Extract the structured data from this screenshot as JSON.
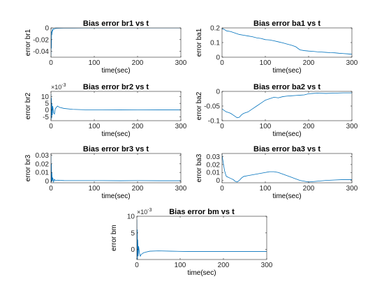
{
  "chart_data": [
    {
      "type": "line",
      "title": "Bias error br1 vs t",
      "xlabel": "time(sec)",
      "ylabel": "error br1",
      "xlim": [
        0,
        300
      ],
      "ylim": [
        -0.05,
        0
      ],
      "xticks": [
        0,
        100,
        200,
        300
      ],
      "xtick_labels": [
        "0",
        "100",
        "200",
        "300"
      ],
      "yticks": [
        0,
        -0.02,
        -0.04
      ],
      "ytick_labels": [
        "0",
        "-0.02",
        "-0.04"
      ],
      "exponent_label": "",
      "color": "#0072BD",
      "series": [
        {
          "x": [
            0,
            0.5,
            1,
            1.5,
            2,
            3,
            4,
            5,
            7,
            10,
            15,
            20,
            30,
            50,
            80,
            120,
            160,
            200,
            250,
            300
          ],
          "y": [
            -0.048,
            -0.02,
            -0.035,
            -0.006,
            -0.012,
            -0.003,
            -0.005,
            -0.0015,
            -0.002,
            -0.001,
            -0.0006,
            -0.0004,
            -0.0003,
            -0.0002,
            -0.0001,
            -0.0001,
            0,
            0,
            0,
            0
          ]
        }
      ]
    },
    {
      "type": "line",
      "title": "Bias error ba1 vs t",
      "xlabel": "time(sec)",
      "ylabel": "error ba1",
      "xlim": [
        0,
        300
      ],
      "ylim": [
        0,
        0.2
      ],
      "xticks": [
        0,
        100,
        200,
        300
      ],
      "xtick_labels": [
        "0",
        "100",
        "200",
        "300"
      ],
      "yticks": [
        0,
        0.1,
        0.2
      ],
      "ytick_labels": [
        "0",
        "0.1",
        "0.2"
      ],
      "exponent_label": "",
      "color": "#0072BD",
      "series": [
        {
          "x": [
            0,
            5,
            10,
            20,
            30,
            40,
            50,
            60,
            70,
            80,
            90,
            100,
            110,
            120,
            130,
            140,
            150,
            160,
            170,
            180,
            190,
            200,
            210,
            220,
            230,
            240,
            250,
            260,
            270,
            280,
            290,
            300
          ],
          "y": [
            0.195,
            0.19,
            0.18,
            0.175,
            0.165,
            0.155,
            0.15,
            0.145,
            0.14,
            0.132,
            0.128,
            0.12,
            0.118,
            0.112,
            0.105,
            0.098,
            0.09,
            0.082,
            0.072,
            0.05,
            0.045,
            0.042,
            0.04,
            0.037,
            0.035,
            0.033,
            0.031,
            0.03,
            0.027,
            0.025,
            0.023,
            0.02
          ]
        }
      ]
    },
    {
      "type": "line",
      "title": "Bias error br2 vs t",
      "xlabel": "time(sec)",
      "ylabel": "error br2",
      "xlim": [
        0,
        300
      ],
      "ylim": [
        -0.008,
        0.014
      ],
      "xticks": [
        0,
        100,
        200,
        300
      ],
      "xtick_labels": [
        "0",
        "100",
        "200",
        "300"
      ],
      "yticks": [
        0.01,
        0.005,
        0,
        -0.005
      ],
      "ytick_labels": [
        "10",
        "5",
        "0",
        "-5"
      ],
      "exponent_label": "×10",
      "exponent_power": "-3",
      "color": "#0072BD",
      "series": [
        {
          "x": [
            0,
            0.5,
            1,
            1.5,
            2,
            3,
            4,
            6,
            8,
            10,
            15,
            20,
            30,
            50,
            80,
            120,
            160,
            200,
            250,
            300
          ],
          "y": [
            0.012,
            -0.007,
            0.009,
            -0.006,
            0.005,
            -0.004,
            0.003,
            -0.002,
            -0.003,
            0.001,
            0.003,
            0.002,
            0.0012,
            0.0005,
            0.0002,
            0.0002,
            0.0001,
            0.0002,
            0.0001,
            0.0001
          ]
        }
      ]
    },
    {
      "type": "line",
      "title": "Bias error ba2 vs t",
      "xlabel": "time(sec)",
      "ylabel": "error ba2",
      "xlim": [
        0,
        300
      ],
      "ylim": [
        -0.1,
        0
      ],
      "xticks": [
        0,
        100,
        200,
        300
      ],
      "xtick_labels": [
        "0",
        "100",
        "200",
        "300"
      ],
      "yticks": [
        0,
        -0.05,
        -0.1
      ],
      "ytick_labels": [
        "0",
        "-0.05",
        "-0.1"
      ],
      "exponent_label": "",
      "color": "#0072BD",
      "series": [
        {
          "x": [
            0,
            5,
            10,
            15,
            20,
            25,
            30,
            35,
            40,
            45,
            50,
            60,
            70,
            80,
            90,
            100,
            110,
            120,
            130,
            140,
            150,
            160,
            170,
            180,
            190,
            200,
            210,
            220,
            240,
            260,
            280,
            300
          ],
          "y": [
            -0.06,
            -0.065,
            -0.07,
            -0.072,
            -0.075,
            -0.08,
            -0.085,
            -0.09,
            -0.088,
            -0.08,
            -0.075,
            -0.07,
            -0.06,
            -0.05,
            -0.04,
            -0.03,
            -0.025,
            -0.02,
            -0.022,
            -0.018,
            -0.016,
            -0.015,
            -0.014,
            -0.013,
            -0.012,
            -0.008,
            -0.007,
            -0.006,
            -0.007,
            -0.006,
            -0.005,
            -0.005
          ]
        }
      ]
    },
    {
      "type": "line",
      "title": "Bias error br3 vs t",
      "xlabel": "time(sec)",
      "ylabel": "error br3",
      "xlim": [
        0,
        300
      ],
      "ylim": [
        -0.002,
        0.032
      ],
      "xticks": [
        0,
        100,
        200,
        300
      ],
      "xtick_labels": [
        "0",
        "100",
        "200",
        "300"
      ],
      "yticks": [
        0.03,
        0.02,
        0.01,
        0
      ],
      "ytick_labels": [
        "0.03",
        "0.02",
        "0.01",
        "0"
      ],
      "exponent_label": "",
      "color": "#0072BD",
      "series": [
        {
          "x": [
            0,
            0.5,
            1,
            1.5,
            2,
            3,
            4,
            6,
            8,
            10,
            15,
            20,
            30,
            50,
            80,
            120,
            160,
            200,
            250,
            300
          ],
          "y": [
            0.03,
            0.0,
            0.02,
            -0.001,
            0.01,
            0.0,
            0.004,
            -0.001,
            0.002,
            0.0005,
            0.001,
            0.0008,
            0.0006,
            0.0005,
            0.0005,
            0.0005,
            0.0004,
            0.0005,
            0.0004,
            0.0004
          ]
        }
      ]
    },
    {
      "type": "line",
      "title": "Bias error ba3 vs t",
      "xlabel": "time(sec)",
      "ylabel": "error ba3",
      "xlim": [
        0,
        300
      ],
      "ylim": [
        -0.003,
        0.034
      ],
      "xticks": [
        0,
        100,
        200,
        300
      ],
      "xtick_labels": [
        "0",
        "100",
        "200",
        "300"
      ],
      "yticks": [
        0.03,
        0.02,
        0.01,
        0
      ],
      "ytick_labels": [
        "0.03",
        "0.02",
        "0.01",
        "0"
      ],
      "exponent_label": "",
      "color": "#0072BD",
      "series": [
        {
          "x": [
            0,
            2,
            4,
            6,
            8,
            10,
            14,
            18,
            22,
            26,
            30,
            35,
            40,
            45,
            50,
            60,
            70,
            80,
            90,
            100,
            110,
            120,
            130,
            140,
            150,
            160,
            170,
            180,
            190,
            200,
            220,
            240,
            260,
            280,
            300
          ],
          "y": [
            0.032,
            0.025,
            0.018,
            0.012,
            0.008,
            0.005,
            0.004,
            0.003,
            0.002,
            0.001,
            -0.001,
            -0.002,
            0.0,
            0.003,
            0.005,
            0.006,
            0.007,
            0.008,
            0.009,
            0.01,
            0.011,
            0.011,
            0.01,
            0.008,
            0.006,
            0.004,
            0.002,
            0.0,
            -0.001,
            -0.002,
            -0.001,
            0.0,
            0.0005,
            0.001,
            0.001
          ]
        }
      ]
    },
    {
      "type": "line",
      "title": "Bias error bm vs t",
      "xlabel": "time(sec)",
      "ylabel": "error bm",
      "xlim": [
        0,
        300
      ],
      "ylim": [
        -0.003,
        0.01
      ],
      "xticks": [
        0,
        100,
        200,
        300
      ],
      "xtick_labels": [
        "0",
        "100",
        "200",
        "300"
      ],
      "yticks": [
        0.01,
        0.005,
        0
      ],
      "ytick_labels": [
        "10",
        "5",
        "0"
      ],
      "exponent_label": "×10",
      "exponent_power": "-3",
      "color": "#0072BD",
      "series": [
        {
          "x": [
            0,
            0.5,
            1,
            1.5,
            2,
            3,
            4,
            6,
            8,
            10,
            15,
            20,
            30,
            50,
            80,
            120,
            160,
            200,
            250,
            300
          ],
          "y": [
            0.009,
            -0.002,
            0.006,
            -0.003,
            0.003,
            -0.002,
            0.001,
            -0.001,
            -0.002,
            -0.0015,
            -0.001,
            -0.0008,
            -0.0005,
            -0.0004,
            -0.0005,
            -0.0006,
            -0.0006,
            -0.0006,
            -0.0006,
            -0.0006
          ]
        }
      ]
    }
  ]
}
